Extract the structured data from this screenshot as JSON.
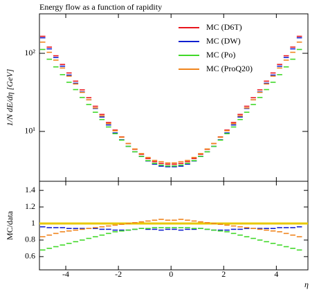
{
  "chart_data": {
    "type": "line",
    "title": "Energy flow as a function of rapidity",
    "xlabel": "η",
    "ylabel": "1/N dE/dη [GeV]",
    "log_y": true,
    "x": [
      -4.875,
      -4.625,
      -4.375,
      -4.125,
      -3.875,
      -3.625,
      -3.375,
      -3.125,
      -2.875,
      -2.625,
      -2.375,
      -2.125,
      -1.875,
      -1.625,
      -1.375,
      -1.125,
      -0.875,
      -0.625,
      -0.375,
      -0.125,
      0.125,
      0.375,
      0.625,
      0.875,
      1.125,
      1.375,
      1.625,
      1.875,
      2.125,
      2.375,
      2.625,
      2.875,
      3.125,
      3.375,
      3.625,
      3.875,
      4.125,
      4.375,
      4.625,
      4.875
    ],
    "xlim": [
      -5,
      5.2
    ],
    "xticks": [
      -4,
      -2,
      0,
      2,
      4
    ],
    "ylim": [
      2.3,
      320
    ],
    "yticks": [
      {
        "value": 10,
        "label": "10¹"
      },
      {
        "value": 100,
        "label": "10²"
      }
    ],
    "legend_position": "upper right",
    "series": [
      {
        "name": "MC (D6T)",
        "color": "#e8141c",
        "values": [
          165,
          120,
          93,
          72,
          56,
          44,
          34,
          27,
          21,
          16.5,
          13,
          10.4,
          8.5,
          7.0,
          5.9,
          5.1,
          4.5,
          4.1,
          3.9,
          3.8,
          3.8,
          3.9,
          4.1,
          4.5,
          5.1,
          5.9,
          7.0,
          8.5,
          10.4,
          13,
          16.5,
          21,
          27,
          34,
          44,
          56,
          72,
          93,
          120,
          165
        ]
      },
      {
        "name": "MC (DW)",
        "color": "#1020d0",
        "values": [
          158,
          114,
          88.4,
          68.4,
          52.6,
          41.4,
          32.0,
          25.4,
          19.7,
          15.3,
          12.1,
          9.57,
          7.82,
          6.44,
          5.49,
          4.79,
          4.19,
          3.81,
          3.59,
          3.53,
          3.53,
          3.59,
          3.81,
          4.19,
          4.79,
          5.49,
          6.44,
          7.82,
          9.57,
          12.1,
          15.3,
          19.7,
          25.4,
          32.0,
          41.4,
          52.6,
          68.4,
          88.4,
          114,
          158
        ]
      },
      {
        "name": "MC (Po)",
        "color": "#40d828",
        "values": [
          112,
          84,
          67.0,
          53.3,
          42.6,
          34.3,
          27.2,
          22.1,
          17.6,
          14.2,
          11.4,
          9.36,
          7.74,
          6.44,
          5.49,
          4.79,
          4.23,
          3.9,
          3.71,
          3.61,
          3.61,
          3.71,
          3.9,
          4.23,
          4.79,
          5.49,
          6.44,
          7.74,
          9.36,
          11.4,
          14.2,
          17.6,
          22.1,
          27.2,
          34.3,
          42.6,
          53.3,
          67.0,
          84,
          112
        ]
      },
      {
        "name": "MC (ProQ20)",
        "color": "#f0841c",
        "values": [
          139,
          103,
          81.8,
          64.8,
          51,
          40.5,
          31.6,
          25.4,
          20.0,
          15.8,
          12.6,
          10.2,
          8.42,
          7.0,
          5.96,
          5.2,
          4.64,
          4.26,
          4.1,
          3.95,
          3.95,
          4.1,
          4.26,
          4.64,
          5.2,
          5.96,
          7.0,
          8.42,
          10.2,
          12.6,
          15.8,
          20.0,
          25.4,
          31.6,
          40.5,
          51,
          64.8,
          81.8,
          103,
          139
        ]
      }
    ],
    "ratio": {
      "ylabel": "MC/data",
      "ylim": [
        0.44,
        1.51
      ],
      "yticks": [
        0.6,
        0.8,
        1,
        1.2,
        1.4
      ],
      "reference": {
        "value": 1,
        "color": "#e8c800"
      },
      "series": [
        {
          "color": "#1020d0",
          "values": [
            0.96,
            0.95,
            0.95,
            0.95,
            0.94,
            0.94,
            0.94,
            0.94,
            0.94,
            0.93,
            0.93,
            0.92,
            0.92,
            0.92,
            0.93,
            0.94,
            0.93,
            0.93,
            0.92,
            0.93,
            0.93,
            0.92,
            0.93,
            0.93,
            0.94,
            0.93,
            0.92,
            0.92,
            0.92,
            0.93,
            0.93,
            0.94,
            0.94,
            0.94,
            0.94,
            0.94,
            0.95,
            0.95,
            0.95,
            0.96
          ]
        },
        {
          "color": "#40d828",
          "values": [
            0.68,
            0.7,
            0.72,
            0.74,
            0.76,
            0.78,
            0.8,
            0.82,
            0.84,
            0.86,
            0.88,
            0.9,
            0.91,
            0.92,
            0.93,
            0.94,
            0.94,
            0.95,
            0.95,
            0.95,
            0.95,
            0.95,
            0.95,
            0.94,
            0.94,
            0.93,
            0.92,
            0.91,
            0.9,
            0.88,
            0.86,
            0.84,
            0.82,
            0.8,
            0.78,
            0.76,
            0.74,
            0.72,
            0.7,
            0.68
          ]
        },
        {
          "color": "#f0841c",
          "values": [
            0.84,
            0.86,
            0.88,
            0.9,
            0.91,
            0.92,
            0.93,
            0.94,
            0.95,
            0.96,
            0.97,
            0.98,
            0.99,
            1.0,
            1.01,
            1.02,
            1.03,
            1.04,
            1.05,
            1.04,
            1.04,
            1.05,
            1.04,
            1.03,
            1.02,
            1.01,
            1.0,
            0.99,
            0.98,
            0.97,
            0.96,
            0.95,
            0.94,
            0.93,
            0.92,
            0.91,
            0.9,
            0.88,
            0.86,
            0.84
          ]
        }
      ]
    }
  }
}
